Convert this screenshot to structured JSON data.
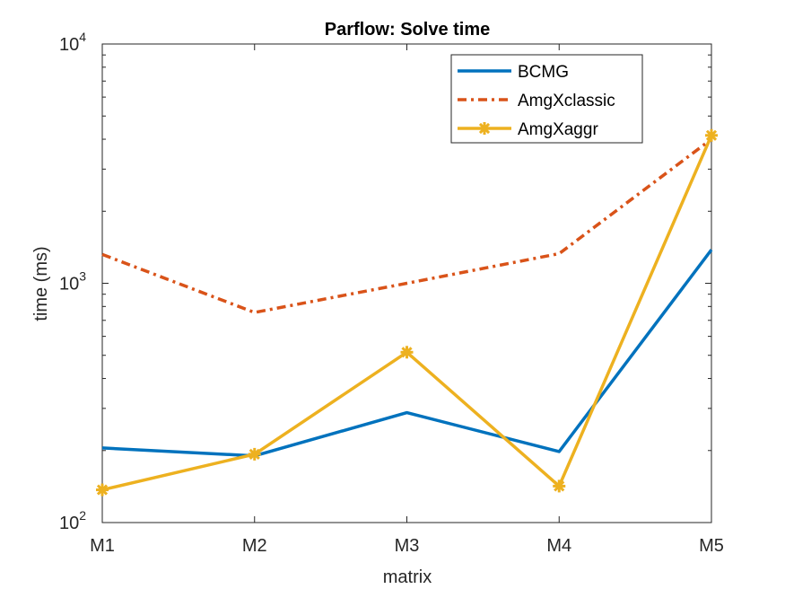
{
  "chart_data": {
    "type": "line",
    "title": "Parflow: Solve time",
    "xlabel": "matrix",
    "ylabel": "time (ms)",
    "yscale": "log",
    "ylim": [
      100,
      10000
    ],
    "categories": [
      "M1",
      "M2",
      "M3",
      "M4",
      "M5"
    ],
    "yticks": [
      {
        "base": "10",
        "exp": "2"
      },
      {
        "base": "10",
        "exp": "3"
      },
      {
        "base": "10",
        "exp": "4"
      }
    ],
    "ytick_values": [
      100,
      1000,
      10000
    ],
    "legend_position": "top-right",
    "series": [
      {
        "name": "BCMG",
        "values": [
          205,
          190,
          288,
          198,
          1380
        ],
        "color": "#0072BD",
        "style": "solid",
        "marker": "none"
      },
      {
        "name": "AmgXclassic",
        "values": [
          1320,
          755,
          1000,
          1330,
          4000
        ],
        "color": "#D95319",
        "style": "dashdot",
        "marker": "none"
      },
      {
        "name": "AmgXaggr",
        "values": [
          137,
          193,
          515,
          142,
          4150
        ],
        "color": "#EDB120",
        "style": "solid",
        "marker": "asterisk"
      }
    ]
  }
}
